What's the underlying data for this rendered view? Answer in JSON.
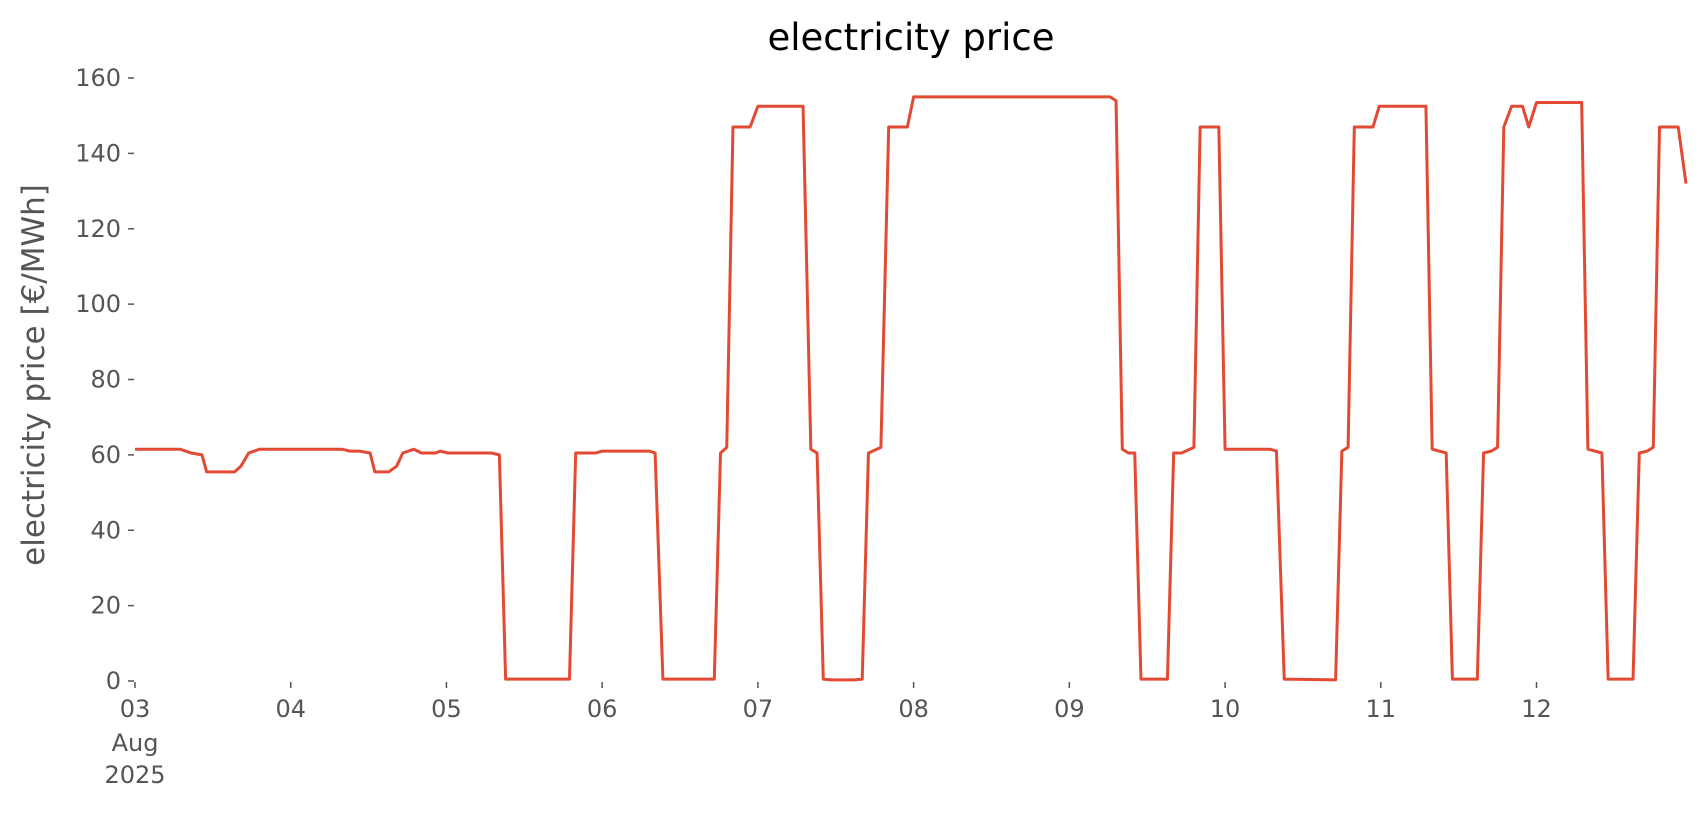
{
  "chart_data": {
    "type": "line",
    "title": "electricity price",
    "y_label": "electricity price [€/MWh]",
    "x_sublabels": [
      "Aug",
      "2025"
    ],
    "x": [
      3.0,
      3.29,
      3.36,
      3.43,
      3.46,
      3.64,
      3.68,
      3.73,
      3.8,
      4.33,
      4.38,
      4.44,
      4.51,
      4.54,
      4.63,
      4.68,
      4.72,
      4.79,
      4.84,
      4.93,
      4.96,
      5.01,
      5.29,
      5.34,
      5.38,
      5.79,
      5.83,
      5.96,
      6.0,
      6.3,
      6.34,
      6.39,
      6.72,
      6.76,
      6.8,
      6.84,
      6.95,
      7.0,
      7.29,
      7.34,
      7.38,
      7.42,
      7.47,
      7.62,
      7.67,
      7.71,
      7.79,
      7.84,
      7.96,
      8.0,
      9.26,
      9.3,
      9.34,
      9.38,
      9.42,
      9.46,
      9.63,
      9.67,
      9.72,
      9.8,
      9.84,
      9.96,
      10.0,
      10.29,
      10.33,
      10.38,
      10.71,
      10.75,
      10.79,
      10.83,
      10.95,
      10.99,
      11.29,
      11.33,
      11.42,
      11.46,
      11.62,
      11.66,
      11.71,
      11.75,
      11.79,
      11.84,
      11.91,
      11.95,
      12.0,
      12.29,
      12.33,
      12.42,
      12.46,
      12.62,
      12.66,
      12.71,
      12.75,
      12.79,
      12.91,
      12.96
    ],
    "series": [
      {
        "name": "electricity price",
        "color": "#e24a33",
        "values": [
          61.5,
          61.5,
          60.5,
          60,
          55.5,
          55.5,
          57,
          60.5,
          61.5,
          61.5,
          61,
          61,
          60.5,
          55.5,
          55.5,
          57,
          60.5,
          61.5,
          60.5,
          60.5,
          61,
          60.5,
          60.5,
          60,
          0.5,
          0.5,
          60.5,
          60.5,
          61,
          61,
          60.5,
          0.5,
          0.5,
          60.5,
          62,
          147,
          147,
          152.5,
          152.5,
          61.5,
          60.5,
          0.5,
          0.3,
          0.3,
          0.5,
          60.5,
          62,
          147,
          147,
          155,
          155,
          154,
          61.5,
          60.5,
          60.5,
          0.5,
          0.5,
          60.5,
          60.5,
          62,
          147,
          147,
          61.5,
          61.5,
          61,
          0.5,
          0.3,
          61,
          62,
          147,
          147,
          152.5,
          152.5,
          61.5,
          60.5,
          0.5,
          0.5,
          60.5,
          61,
          62,
          147,
          152.5,
          152.5,
          147,
          153.5,
          153.5,
          61.5,
          60.5,
          0.5,
          0.5,
          60.5,
          61,
          62,
          147,
          147,
          132
        ]
      }
    ],
    "xlim": [
      3,
      12.96
    ],
    "ylim": [
      0,
      160
    ],
    "xticks": [
      {
        "value": 3,
        "label": "03"
      },
      {
        "value": 4,
        "label": "04"
      },
      {
        "value": 5,
        "label": "05"
      },
      {
        "value": 6,
        "label": "06"
      },
      {
        "value": 7,
        "label": "07"
      },
      {
        "value": 8,
        "label": "08"
      },
      {
        "value": 9,
        "label": "09"
      },
      {
        "value": 10,
        "label": "10"
      },
      {
        "value": 11,
        "label": "11"
      },
      {
        "value": 12,
        "label": "12"
      }
    ],
    "yticks": [
      0,
      20,
      40,
      60,
      80,
      100,
      120,
      140,
      160
    ]
  }
}
